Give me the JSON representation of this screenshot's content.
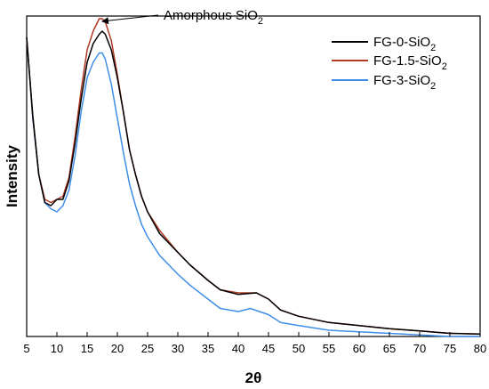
{
  "chart_data": {
    "type": "line",
    "xlabel": "2θ",
    "ylabel": "Intensity",
    "xlim": [
      5,
      80
    ],
    "xticks": [
      5,
      10,
      15,
      20,
      25,
      30,
      35,
      40,
      45,
      50,
      55,
      60,
      65,
      70,
      75,
      80
    ],
    "annotation": {
      "text": "Amorphous SiO",
      "subscript": "2",
      "x": 17.5
    },
    "legend_position": "top-right",
    "grid": false,
    "series": [
      {
        "name": "FG-0-SiO",
        "name_sub": "2",
        "color": "#000000",
        "x": [
          5,
          6,
          7,
          8,
          9,
          10,
          11,
          12,
          13,
          14,
          15,
          16,
          17,
          17.5,
          18,
          19,
          20,
          21,
          22,
          23,
          24,
          25,
          27,
          30,
          32,
          35,
          37,
          40,
          43,
          45,
          47,
          50,
          55,
          60,
          65,
          70,
          75,
          80
        ],
        "y": [
          0.96,
          0.71,
          0.52,
          0.43,
          0.42,
          0.44,
          0.44,
          0.5,
          0.62,
          0.76,
          0.88,
          0.94,
          0.97,
          0.98,
          0.97,
          0.92,
          0.83,
          0.72,
          0.6,
          0.52,
          0.45,
          0.4,
          0.33,
          0.27,
          0.23,
          0.18,
          0.15,
          0.135,
          0.14,
          0.12,
          0.085,
          0.065,
          0.045,
          0.035,
          0.025,
          0.018,
          0.01,
          0.008
        ]
      },
      {
        "name": "FG-1.5-SiO",
        "name_sub": "2",
        "color": "#b03a24",
        "x": [
          5,
          6,
          7,
          8,
          9,
          10,
          11,
          12,
          13,
          14,
          15,
          16,
          17,
          17.5,
          18,
          19,
          20,
          21,
          22,
          23,
          24,
          25,
          27,
          30,
          32,
          35,
          37,
          40,
          43,
          45,
          47,
          50,
          55,
          60,
          65,
          70,
          75,
          80
        ],
        "y": [
          0.96,
          0.71,
          0.52,
          0.44,
          0.43,
          0.44,
          0.45,
          0.51,
          0.64,
          0.79,
          0.92,
          0.98,
          1.02,
          1.02,
          1.01,
          0.95,
          0.84,
          0.72,
          0.6,
          0.52,
          0.45,
          0.4,
          0.34,
          0.27,
          0.23,
          0.18,
          0.15,
          0.14,
          0.14,
          0.12,
          0.085,
          0.065,
          0.045,
          0.035,
          0.025,
          0.018,
          0.01,
          0.008
        ]
      },
      {
        "name": "FG-3-SiO",
        "name_sub": "2",
        "color": "#3e8ee8",
        "x": [
          5,
          6,
          7,
          8,
          9,
          10,
          11,
          12,
          13,
          14,
          15,
          16,
          17,
          17.5,
          18,
          19,
          20,
          21,
          22,
          23,
          24,
          25,
          27,
          30,
          32,
          35,
          37,
          40,
          42,
          45,
          47,
          50,
          55,
          60,
          65,
          70,
          75,
          80
        ],
        "y": [
          0.96,
          0.7,
          0.52,
          0.43,
          0.41,
          0.4,
          0.42,
          0.47,
          0.58,
          0.72,
          0.83,
          0.88,
          0.91,
          0.91,
          0.89,
          0.81,
          0.7,
          0.59,
          0.49,
          0.42,
          0.36,
          0.32,
          0.26,
          0.2,
          0.165,
          0.12,
          0.09,
          0.08,
          0.09,
          0.07,
          0.045,
          0.035,
          0.02,
          0.015,
          0.01,
          0.005,
          0.0,
          0.0
        ]
      }
    ]
  }
}
